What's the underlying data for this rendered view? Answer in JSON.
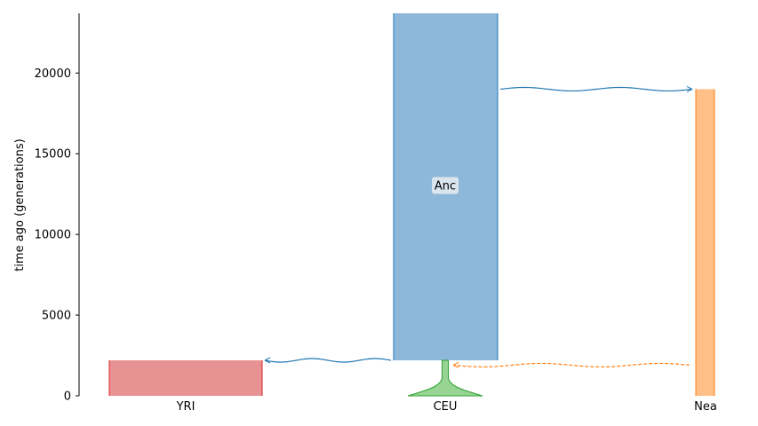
{
  "chart_data": {
    "type": "demography",
    "ylabel": "time ago (generations)",
    "ylim": [
      0,
      23700
    ],
    "yticks": [
      0,
      5000,
      10000,
      15000,
      20000
    ],
    "demes": [
      {
        "name": "YRI",
        "label_position": "bottom",
        "start_time": 2200,
        "end_time": 0,
        "fill": "#e99293",
        "stroke": "#d62728"
      },
      {
        "name": "Anc",
        "label_position": "inside",
        "start_time": 23700,
        "end_time": 2200,
        "fill": "#8db8da",
        "stroke": "#1f77b4"
      },
      {
        "name": "CEU",
        "label_position": "bottom",
        "start_time": 2200,
        "end_time": 0,
        "fill": "#98d594",
        "stroke": "#2ca02c",
        "growth": "exponential"
      },
      {
        "name": "Nea",
        "label_position": "bottom",
        "start_time": 19000,
        "end_time": 0,
        "fill": "#ffbf86",
        "stroke": "#ff7f0e"
      }
    ],
    "events": [
      {
        "kind": "ancestry",
        "from": "Anc",
        "to": "Nea",
        "time": 19000,
        "color": "#1f77b4",
        "style": "solid"
      },
      {
        "kind": "ancestry",
        "from": "Anc",
        "to": "YRI",
        "time": 2200,
        "color": "#1f77b4",
        "style": "solid"
      },
      {
        "kind": "pulse",
        "from": "Nea",
        "to": "CEU",
        "time": 1900,
        "color": "#ff7f0e",
        "style": "dashed"
      }
    ]
  }
}
